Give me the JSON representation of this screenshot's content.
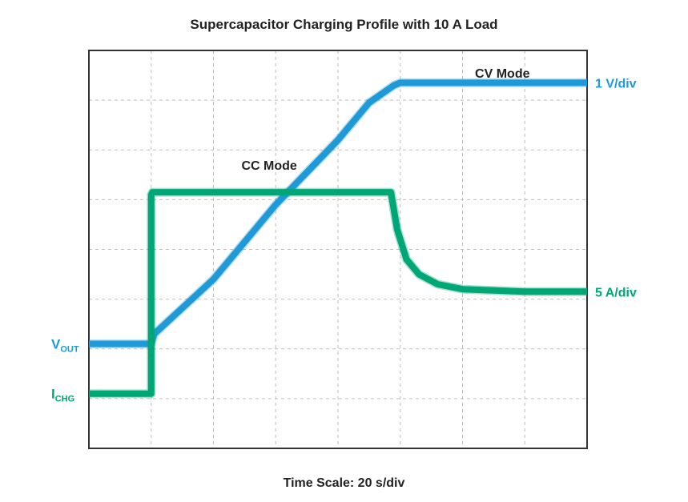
{
  "chart_data": {
    "type": "line",
    "title": "Supercapacitor Charging Profile with 10 A Load",
    "xlabel": "Time Scale: 20 s/div",
    "divisions": {
      "x": 8,
      "y": 8
    },
    "grid": true,
    "grid_style": "dashed",
    "x_unit": "div",
    "y_unit": "div",
    "colors": {
      "vout": "#1f9ad6",
      "ichg": "#00a676",
      "frame": "#333333",
      "grid": "#bdbdbd",
      "text": "#222222"
    },
    "series": [
      {
        "key": "vout",
        "name": "V",
        "name_sub": "OUT",
        "scale": "1 V/div",
        "x": [
          0,
          1,
          1.05,
          2,
          3,
          4,
          4.5,
          4.9,
          5,
          8
        ],
        "y": [
          2.1,
          2.1,
          2.3,
          3.4,
          4.9,
          6.2,
          6.95,
          7.3,
          7.35,
          7.35
        ]
      },
      {
        "key": "ichg",
        "name": "I",
        "name_sub": "CHG",
        "scale": "5 A/div",
        "x": [
          0,
          1,
          1.0,
          1.02,
          2,
          3,
          4,
          4.85,
          4.95,
          5.1,
          5.3,
          5.6,
          6,
          7,
          8
        ],
        "y": [
          1.1,
          1.1,
          5.1,
          5.15,
          5.15,
          5.15,
          5.15,
          5.15,
          4.4,
          3.8,
          3.5,
          3.3,
          3.2,
          3.15,
          3.15
        ]
      }
    ],
    "annotations": [
      {
        "text": "CC Mode",
        "x": 2.45,
        "y": 5.6
      },
      {
        "text": "CV Mode",
        "x": 6.2,
        "y": 7.45
      }
    ]
  }
}
